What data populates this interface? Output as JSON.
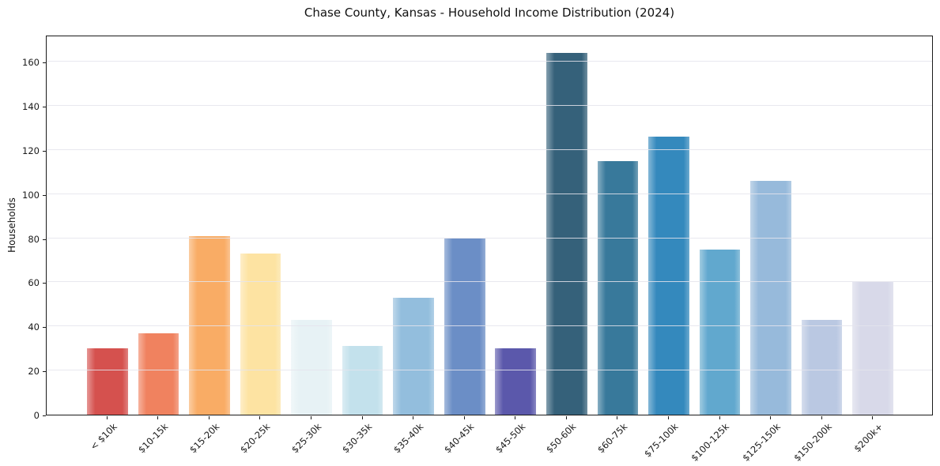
{
  "chart_data": {
    "type": "bar",
    "title": "Chase County, Kansas - Household Income Distribution (2024)",
    "xlabel": "",
    "ylabel": "Households",
    "categories": [
      "< $10k",
      "$10-15k",
      "$15-20k",
      "$20-25k",
      "$25-30k",
      "$30-35k",
      "$35-40k",
      "$40-45k",
      "$45-50k",
      "$50-60k",
      "$60-75k",
      "$75-100k",
      "$100-125k",
      "$125-150k",
      "$150-200k",
      "$200k+"
    ],
    "values": [
      30,
      37,
      81,
      73,
      43,
      31,
      53,
      80,
      30,
      164,
      115,
      126,
      75,
      106,
      43,
      60
    ],
    "bar_colors": [
      "#d5514e",
      "#f0825f",
      "#f9ac65",
      "#fde3a2",
      "#e7f2f5",
      "#c3e1ec",
      "#93bedd",
      "#6b8ec6",
      "#5b58ab",
      "#35617a",
      "#38799b",
      "#3489bd",
      "#61a8ce",
      "#97badb",
      "#bac8e2",
      "#d8d9e9"
    ],
    "yticks": [
      0,
      20,
      40,
      60,
      80,
      100,
      120,
      140,
      160
    ],
    "ylim": [
      0,
      172.2
    ],
    "grid": "horizontal-light",
    "legend_position": "none",
    "x_tick_rotation_deg": 45,
    "background_color": "#ffffff",
    "spine_color": "#1a1a1a"
  }
}
